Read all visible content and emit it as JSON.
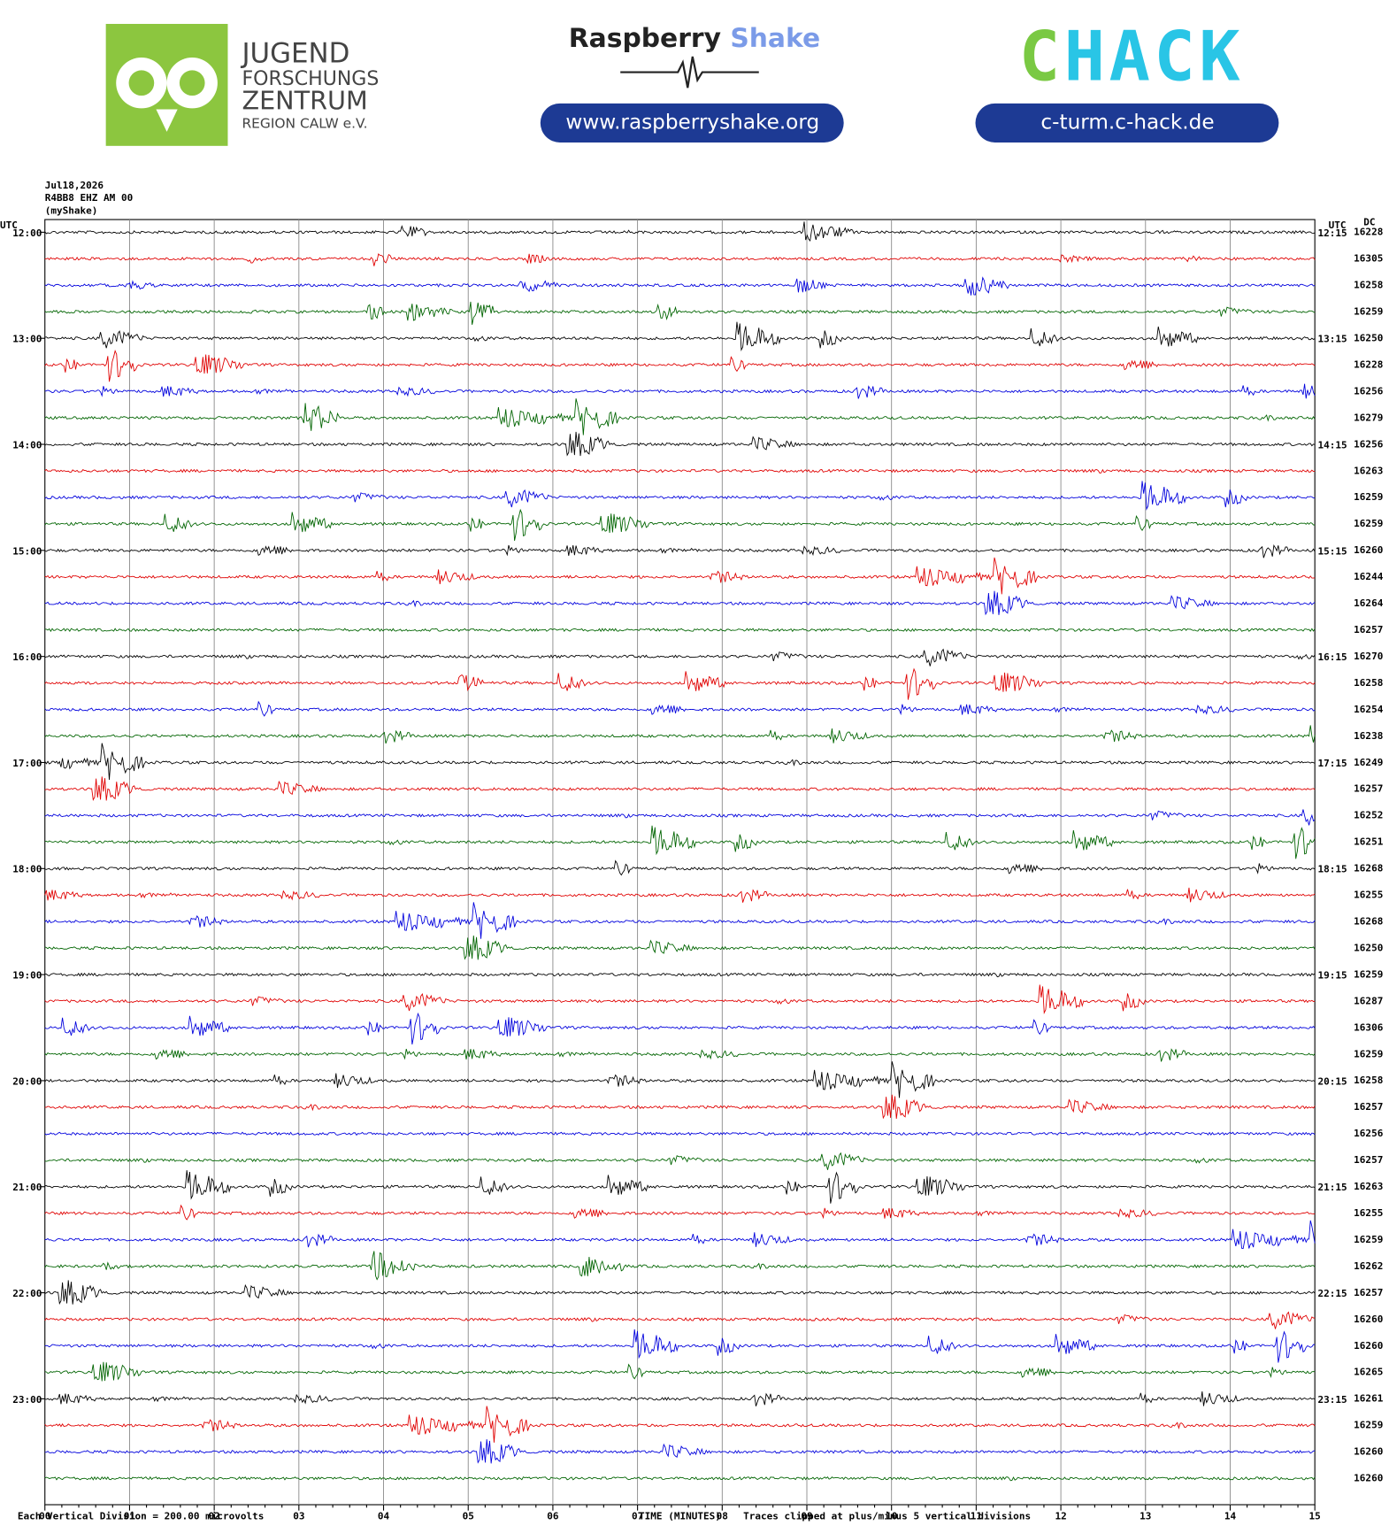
{
  "header": {
    "logo_left": [
      "JUGEND",
      "FORSCHUNGS",
      "ZENTRUM",
      "REGION CALW e.V."
    ],
    "rs_title": [
      "Raspberry",
      "Shake"
    ],
    "rs_url": "www.raspberryshake.org",
    "chack_title": [
      "C",
      "HACK"
    ],
    "chack_url": "c-turm.c-hack.de"
  },
  "station": [
    "Jul18,2026",
    "R4BB8 EHZ AM 00",
    "(myShake)"
  ],
  "left_axis": {
    "unit": "UTC",
    "labels": [
      "12:00",
      "13:00",
      "14:00",
      "15:00",
      "16:00",
      "17:00",
      "18:00",
      "19:00",
      "20:00",
      "21:00",
      "22:00",
      "23:00"
    ]
  },
  "right_axis": {
    "unit": "UTC",
    "labels": [
      "12:15",
      "13:15",
      "14:15",
      "15:15",
      "16:15",
      "17:15",
      "18:15",
      "19:15",
      "20:15",
      "21:15",
      "22:15",
      "23:15"
    ]
  },
  "dc": {
    "label": "DC",
    "values": [
      16228,
      16305,
      16258,
      16259,
      16250,
      16228,
      16256,
      16279,
      16256,
      16263,
      16259,
      16259,
      16260,
      16244,
      16264,
      16257,
      16270,
      16258,
      16254,
      16238,
      16249,
      16257,
      16252,
      16251,
      16268,
      16255,
      16268,
      16250,
      16259,
      16287,
      16306,
      16259,
      16258,
      16257,
      16256,
      16257,
      16263,
      16255,
      16259,
      16262,
      16257,
      16260,
      16260,
      16265,
      16261,
      16259,
      16260,
      16260
    ]
  },
  "trace_colors": [
    "#000000",
    "#e00000",
    "#0000dd",
    "#006400"
  ],
  "x_axis": {
    "label": "TIME (MINUTES)",
    "ticks": [
      "00",
      "01",
      "02",
      "03",
      "04",
      "05",
      "06",
      "07",
      "08",
      "09",
      "10",
      "11",
      "12",
      "13",
      "14",
      "15"
    ]
  },
  "footer": {
    "division": "Each Vertical Division =  200.00 microvolts",
    "clip": "Traces clipped at plus/minus 5 vertical divisions"
  }
}
